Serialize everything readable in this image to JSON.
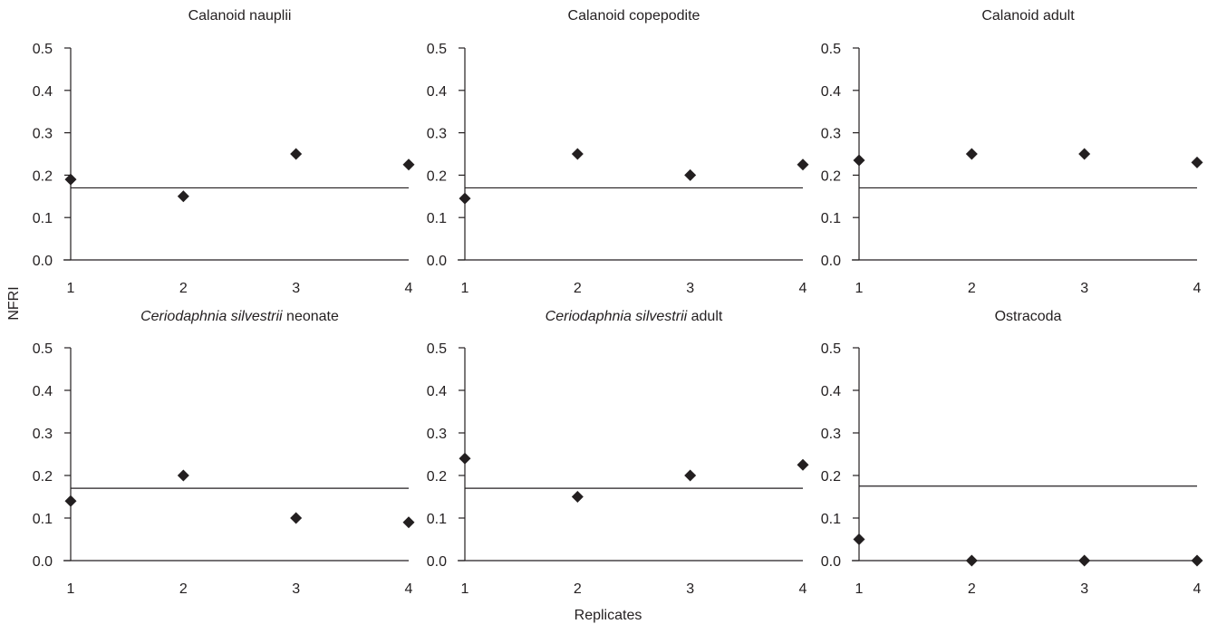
{
  "figure": {
    "ylabel": "NFRI",
    "xlabel": "Replicates"
  },
  "chart_data": [
    {
      "type": "scatter",
      "title": "Calanoid nauplii",
      "x": [
        1,
        2,
        3,
        4
      ],
      "values": [
        0.19,
        0.15,
        0.25,
        0.225
      ],
      "reference_line": 0.17,
      "xlim": [
        1,
        4
      ],
      "ylim": [
        0,
        0.5
      ],
      "xticks": [
        "1",
        "2",
        "3",
        "4"
      ],
      "yticks": [
        "0.0",
        "0.1",
        "0.2",
        "0.3",
        "0.4",
        "0.5"
      ]
    },
    {
      "type": "scatter",
      "title": "Calanoid copepodite",
      "x": [
        1,
        2,
        3,
        4
      ],
      "values": [
        0.145,
        0.25,
        0.2,
        0.225
      ],
      "reference_line": 0.17,
      "xlim": [
        1,
        4
      ],
      "ylim": [
        0,
        0.5
      ],
      "xticks": [
        "1",
        "2",
        "3",
        "4"
      ],
      "yticks": [
        "0.0",
        "0.1",
        "0.2",
        "0.3",
        "0.4",
        "0.5"
      ]
    },
    {
      "type": "scatter",
      "title": "Calanoid adult",
      "x": [
        1,
        2,
        3,
        4
      ],
      "values": [
        0.235,
        0.25,
        0.25,
        0.23
      ],
      "reference_line": 0.17,
      "xlim": [
        1,
        4
      ],
      "ylim": [
        0,
        0.5
      ],
      "xticks": [
        "1",
        "2",
        "3",
        "4"
      ],
      "yticks": [
        "0.0",
        "0.1",
        "0.2",
        "0.3",
        "0.4",
        "0.5"
      ]
    },
    {
      "type": "scatter",
      "title": "Ceriodaphnia silvestrii neonate",
      "title_italic": "Ceriodaphnia silvestrii",
      "title_rest": " neonate",
      "x": [
        1,
        2,
        3,
        4
      ],
      "values": [
        0.14,
        0.2,
        0.1,
        0.09
      ],
      "reference_line": 0.17,
      "xlim": [
        1,
        4
      ],
      "ylim": [
        0,
        0.5
      ],
      "xticks": [
        "1",
        "2",
        "3",
        "4"
      ],
      "yticks": [
        "0.0",
        "0.1",
        "0.2",
        "0.3",
        "0.4",
        "0.5"
      ]
    },
    {
      "type": "scatter",
      "title": "Ceriodaphnia silvestrii adult",
      "title_italic": "Ceriodaphnia silvestrii",
      "title_rest": " adult",
      "x": [
        1,
        2,
        3,
        4
      ],
      "values": [
        0.24,
        0.15,
        0.2,
        0.225
      ],
      "reference_line": 0.17,
      "xlim": [
        1,
        4
      ],
      "ylim": [
        0,
        0.5
      ],
      "xticks": [
        "1",
        "2",
        "3",
        "4"
      ],
      "yticks": [
        "0.0",
        "0.1",
        "0.2",
        "0.3",
        "0.4",
        "0.5"
      ]
    },
    {
      "type": "scatter",
      "title": "Ostracoda",
      "x": [
        1,
        2,
        3,
        4
      ],
      "values": [
        0.05,
        0.0,
        0.0,
        0.0
      ],
      "reference_line": 0.175,
      "xlim": [
        1,
        4
      ],
      "ylim": [
        0,
        0.5
      ],
      "xticks": [
        "1",
        "2",
        "3",
        "4"
      ],
      "yticks": [
        "0.0",
        "0.1",
        "0.2",
        "0.3",
        "0.4",
        "0.5"
      ]
    }
  ]
}
